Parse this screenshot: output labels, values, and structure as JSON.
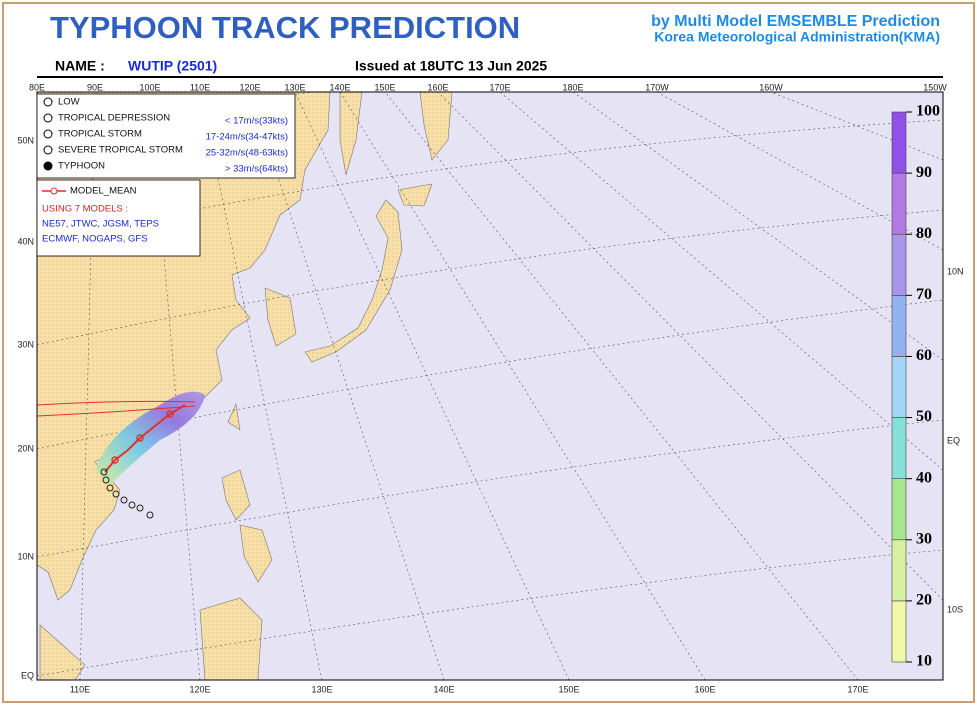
{
  "header": {
    "title": "TYPHOON TRACK PREDICTION",
    "credit_line1": "by Multi Model EMSEMBLE Prediction",
    "credit_line2": "Korea Meteorological Administration(KMA)",
    "name_label": "NAME :",
    "storm_name": "WUTIP (2501)",
    "issued": "Issued at 18UTC 13 Jun 2025"
  },
  "map": {
    "top_lon_labels": [
      "80E",
      "90E",
      "100E",
      "110E",
      "120E",
      "130E",
      "140E",
      "150E",
      "160E",
      "170E",
      "180E",
      "170W",
      "160W",
      "150W"
    ],
    "left_lat_labels": [
      "50N",
      "40N",
      "30N",
      "20N",
      "10N",
      "EQ"
    ],
    "bottom_lon_labels": [
      "110E",
      "120E",
      "130E",
      "140E",
      "150E",
      "160E",
      "170E"
    ],
    "right_lat_labels": [
      "10N",
      "EQ",
      "10S"
    ]
  },
  "legend": {
    "intensity": [
      {
        "label": "LOW"
      },
      {
        "label": "TROPICAL DEPRESSION",
        "speed": "< 17m/s(33kts)"
      },
      {
        "label": "TROPICAL STORM",
        "speed": "17-24m/s(34-47kts)"
      },
      {
        "label": "SEVERE TROPICAL STORM",
        "speed": "25-32m/s(48-63kts)"
      },
      {
        "label": "TYPHOON",
        "speed": "> 33m/s(64kts)"
      }
    ],
    "model_mean": "MODEL_MEAN",
    "models_heading": "USING 7 MODELS :",
    "models": [
      "NE57, JTWC, JGSM, TEPS",
      "ECMWF, NOGAPS, GFS"
    ]
  },
  "colorbar": {
    "levels": [
      10,
      20,
      30,
      40,
      50,
      60,
      70,
      80,
      90,
      100
    ],
    "colors": [
      "#f2f8a8",
      "#d6f2a0",
      "#a8e68e",
      "#86e0d8",
      "#a2d6f6",
      "#92b2f0",
      "#a894e8",
      "#b478e4",
      "#9050ea"
    ]
  }
}
